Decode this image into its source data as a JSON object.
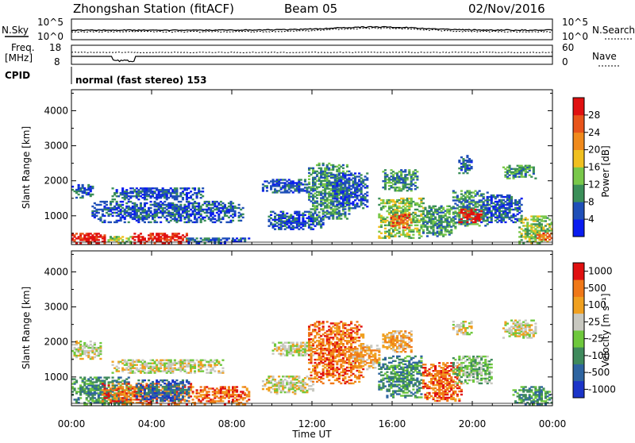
{
  "header": {
    "station": "Zhongshan Station (fitACF)",
    "beam": "Beam 05",
    "date": "02/Nov/2016"
  },
  "side_labels": {
    "noise_sky": "N.Sky",
    "noise_search": "N.Search",
    "freq_line1": "Freq.",
    "freq_line2": "[MHz]",
    "cpid": "CPID",
    "nave": "Nave"
  },
  "noise_axis": {
    "left_top": "10^5",
    "left_bottom": "10^0",
    "right_top": "10^5",
    "right_bottom": "10^0"
  },
  "freq_axis": {
    "left_top": "18",
    "left_bottom": "8",
    "right_top": "60",
    "right_bottom": "0"
  },
  "cpid_text": "normal (fast stereo) 153",
  "chart_data": [
    {
      "type": "heatmap",
      "name": "power",
      "ylabel": "Slant Range [km]",
      "xlabel": "Time UT",
      "x_ticks": [
        "00:00",
        "04:00",
        "08:00",
        "12:00",
        "16:00",
        "20:00",
        "00:00"
      ],
      "xlim_hours": [
        0,
        24
      ],
      "y_ticks": [
        1000,
        2000,
        3000,
        4000
      ],
      "ylim": [
        180,
        4600
      ],
      "colorbar": {
        "label": "Power [dB]",
        "ticks": [
          "4",
          "8",
          "12",
          "16",
          "20",
          "24",
          "28"
        ],
        "colors": [
          "#0a1cf0",
          "#1f4fb8",
          "#3b8f59",
          "#79c84a",
          "#f0c020",
          "#f08a1c",
          "#e8541a",
          "#e01010"
        ]
      },
      "regions": [
        {
          "t": [
            0.0,
            1.7
          ],
          "r": [
            200,
            480
          ],
          "level": 7
        },
        {
          "t": [
            1.7,
            3.0
          ],
          "r": [
            200,
            420
          ],
          "level": 3
        },
        {
          "t": [
            3.0,
            5.7
          ],
          "r": [
            200,
            500
          ],
          "level": 7
        },
        {
          "t": [
            5.7,
            8.8
          ],
          "r": [
            200,
            380
          ],
          "level": 1
        },
        {
          "t": [
            0.0,
            1.0
          ],
          "r": [
            1500,
            1900
          ],
          "level": 1
        },
        {
          "t": [
            1.0,
            8.5
          ],
          "r": [
            800,
            1400
          ],
          "level": 1
        },
        {
          "t": [
            2.0,
            6.5
          ],
          "r": [
            1450,
            1800
          ],
          "level": 1
        },
        {
          "t": [
            9.5,
            12.0
          ],
          "r": [
            1650,
            2050
          ],
          "level": 1
        },
        {
          "t": [
            9.8,
            12.5
          ],
          "r": [
            600,
            1100
          ],
          "level": 1
        },
        {
          "t": [
            11.8,
            13.8
          ],
          "r": [
            900,
            2500
          ],
          "level": 2
        },
        {
          "t": [
            13.0,
            14.7
          ],
          "r": [
            1200,
            2200
          ],
          "level": 1
        },
        {
          "t": [
            15.3,
            17.6
          ],
          "r": [
            350,
            1500
          ],
          "level": 3
        },
        {
          "t": [
            15.8,
            17.0
          ],
          "r": [
            650,
            1050
          ],
          "level": 6
        },
        {
          "t": [
            15.5,
            17.3
          ],
          "r": [
            1700,
            2300
          ],
          "level": 2
        },
        {
          "t": [
            17.5,
            19.2
          ],
          "r": [
            400,
            1300
          ],
          "level": 2
        },
        {
          "t": [
            19.0,
            20.8
          ],
          "r": [
            700,
            1700
          ],
          "level": 2
        },
        {
          "t": [
            19.3,
            20.5
          ],
          "r": [
            800,
            1200
          ],
          "level": 7
        },
        {
          "t": [
            20.4,
            22.5
          ],
          "r": [
            800,
            1600
          ],
          "level": 1
        },
        {
          "t": [
            21.5,
            23.2
          ],
          "r": [
            2050,
            2450
          ],
          "level": 2
        },
        {
          "t": [
            19.3,
            20.0
          ],
          "r": [
            2200,
            2700
          ],
          "level": 1
        },
        {
          "t": [
            22.3,
            24.0
          ],
          "r": [
            200,
            1000
          ],
          "level": 3
        },
        {
          "t": [
            23.2,
            24.0
          ],
          "r": [
            300,
            500
          ],
          "level": 6
        }
      ]
    },
    {
      "type": "heatmap",
      "name": "velocity",
      "ylabel": "Slant Range [km]",
      "xlabel": "Time UT",
      "x_ticks": [
        "00:00",
        "04:00",
        "08:00",
        "12:00",
        "16:00",
        "20:00",
        "00:00"
      ],
      "xlim_hours": [
        0,
        24
      ],
      "y_ticks": [
        1000,
        2000,
        3000,
        4000
      ],
      "ylim": [
        180,
        4600
      ],
      "colorbar": {
        "label": "Velocity [m s⁻¹]",
        "ticks": [
          "1000",
          "500",
          "100",
          "25",
          "-25",
          "-100",
          "-500",
          "-1000"
        ],
        "colors": [
          "#1b34c8",
          "#2e64a0",
          "#3f8a5c",
          "#6ec83c",
          "#c8c8c0",
          "#f0a020",
          "#f07818",
          "#e01010"
        ]
      },
      "regions": [
        {
          "t": [
            0.0,
            3.0
          ],
          "r": [
            200,
            1000
          ],
          "level": 2
        },
        {
          "t": [
            0.0,
            1.5
          ],
          "r": [
            1500,
            2000
          ],
          "level": 4
        },
        {
          "t": [
            1.5,
            6.0
          ],
          "r": [
            200,
            800
          ],
          "level": 6
        },
        {
          "t": [
            3.2,
            5.8
          ],
          "r": [
            300,
            900
          ],
          "level": 1
        },
        {
          "t": [
            2.0,
            7.5
          ],
          "r": [
            1100,
            1500
          ],
          "level": 4
        },
        {
          "t": [
            6.0,
            8.8
          ],
          "r": [
            200,
            700
          ],
          "level": 6
        },
        {
          "t": [
            9.5,
            12.0
          ],
          "r": [
            500,
            1000
          ],
          "level": 4
        },
        {
          "t": [
            10.0,
            12.0
          ],
          "r": [
            1600,
            2000
          ],
          "level": 4
        },
        {
          "t": [
            11.8,
            14.5
          ],
          "r": [
            800,
            2600
          ],
          "level": 6
        },
        {
          "t": [
            14.0,
            15.3
          ],
          "r": [
            1200,
            1900
          ],
          "level": 5
        },
        {
          "t": [
            15.3,
            17.5
          ],
          "r": [
            400,
            1600
          ],
          "level": 2
        },
        {
          "t": [
            15.5,
            17.0
          ],
          "r": [
            1700,
            2300
          ],
          "level": 5
        },
        {
          "t": [
            17.5,
            19.5
          ],
          "r": [
            300,
            1400
          ],
          "level": 6
        },
        {
          "t": [
            19.0,
            21.0
          ],
          "r": [
            800,
            1600
          ],
          "level": 3
        },
        {
          "t": [
            19.0,
            20.0
          ],
          "r": [
            2200,
            2600
          ],
          "level": 4
        },
        {
          "t": [
            21.5,
            23.2
          ],
          "r": [
            2100,
            2600
          ],
          "level": 4
        },
        {
          "t": [
            22.0,
            24.0
          ],
          "r": [
            200,
            700
          ],
          "level": 2
        }
      ]
    }
  ]
}
